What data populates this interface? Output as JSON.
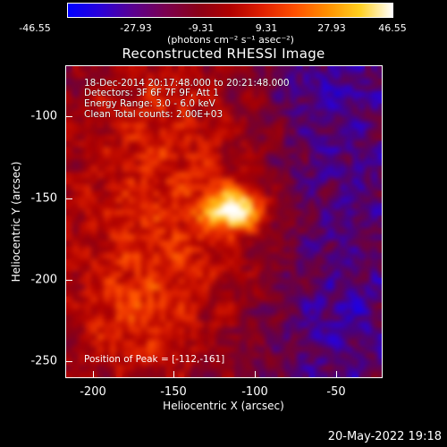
{
  "colorbar": {
    "ticks": [
      "-46.55",
      "-27.93",
      "-9.31",
      "9.31",
      "27.93",
      "46.55"
    ],
    "unit": "(photons cm⁻² s⁻¹ asec⁻²)",
    "range": [
      -46.55,
      46.55
    ],
    "colors": {
      "min": "#0000ff",
      "mid": "#8a0018",
      "max": "#ffffff"
    }
  },
  "title": "Reconstructed RHESSI Image",
  "info": {
    "line1": "18-Dec-2014 20:17:48.000 to 20:21:48.000",
    "line2": "Detectors: 3F 6F 7F 9F, Att 1",
    "line3": "Energy Range: 3.0 - 6.0 keV",
    "line4": "Clean     Total counts: 2.00E+03"
  },
  "peak": "Position of Peak = [-112,-161]",
  "axes": {
    "xlabel": "Heliocentric X (arcsec)",
    "ylabel": "Heliocentric Y (arcsec)",
    "xticks": [
      "-200",
      "-150",
      "-100",
      "-50"
    ],
    "yticks": [
      "-100",
      "-150",
      "-200",
      "-250"
    ],
    "xlim": [
      -215,
      -23
    ],
    "ylim": [
      -263,
      -73
    ]
  },
  "timestamp": "20-May-2022 19:18"
}
